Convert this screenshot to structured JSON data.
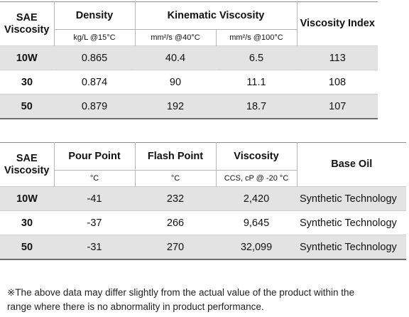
{
  "table1": {
    "headers": {
      "sae": "SAE\nViscosity",
      "density": "Density",
      "kinematic": "Kinematic Viscosity",
      "vi": "Viscosity Index"
    },
    "units": {
      "density": "kg/L @15°C",
      "kv40": "mm²/s @40°C",
      "kv100": "mm²/s @100°C"
    },
    "rows": [
      {
        "grade": "10W",
        "density": "0.865",
        "kv40": "40.4",
        "kv100": "6.5",
        "vi": "113"
      },
      {
        "grade": "30",
        "density": "0.874",
        "kv40": "90",
        "kv100": "11.1",
        "vi": "108"
      },
      {
        "grade": "50",
        "density": "0.879",
        "kv40": "192",
        "kv100": "18.7",
        "vi": "107"
      }
    ]
  },
  "table2": {
    "headers": {
      "sae": "SAE\nViscosity",
      "pour": "Pour Point",
      "flash": "Flash Point",
      "viscosity": "Viscosity",
      "base": "Base Oil"
    },
    "units": {
      "pour": "°C",
      "flash": "°C",
      "viscosity": "CCS, cP @ -20 °C"
    },
    "rows": [
      {
        "grade": "10W",
        "pour": "-41",
        "flash": "232",
        "visc": "2,420",
        "base": "Synthetic Technology"
      },
      {
        "grade": "30",
        "pour": "-37",
        "flash": "266",
        "visc": "9,645",
        "base": "Synthetic Technology"
      },
      {
        "grade": "50",
        "pour": "-31",
        "flash": "270",
        "visc": "32,099",
        "base": "Synthetic Technology"
      }
    ]
  },
  "note": {
    "line1": "※The above data may differ slightly from the actual value of the product within the",
    "line2": "range where there is no abnormality in product performance."
  }
}
